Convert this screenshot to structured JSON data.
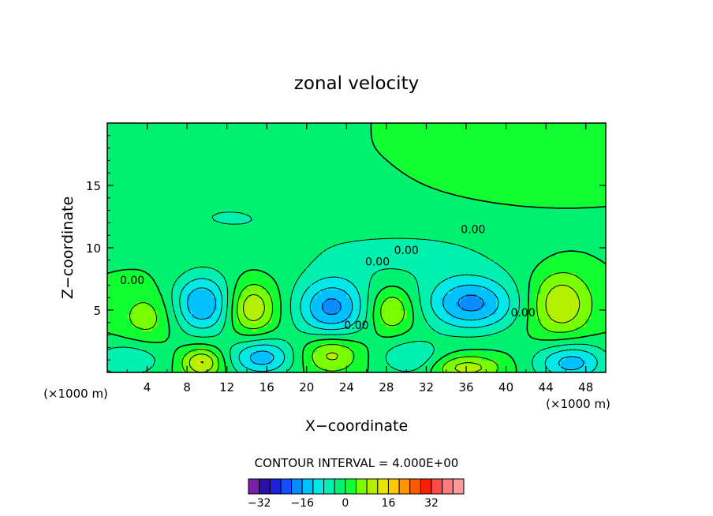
{
  "chart_data": {
    "type": "heatmap",
    "title": "zonal velocity",
    "xlabel": "X−coordinate",
    "ylabel": "Z−coordinate",
    "x_unit_left": "(×1000 m)",
    "x_unit_right": "(×1000 m)",
    "xlim": [
      0,
      50
    ],
    "ylim": [
      0,
      20
    ],
    "x_ticks": [
      4,
      8,
      12,
      16,
      20,
      24,
      28,
      32,
      36,
      40,
      44,
      48
    ],
    "y_ticks": [
      5,
      10,
      15
    ],
    "contour_interval_text": "CONTOUR INTERVAL = 4.000E+00",
    "contour_labels": [
      {
        "text": "0.00",
        "x": 36.7,
        "y": 11.5
      },
      {
        "text": "0.00",
        "x": 30.0,
        "y": 9.8
      },
      {
        "text": "0.00",
        "x": 27.1,
        "y": 8.9
      },
      {
        "text": "0.00",
        "x": 2.5,
        "y": 7.4
      },
      {
        "text": "0.00",
        "x": 25.0,
        "y": 3.8
      },
      {
        "text": "0.00",
        "x": 41.7,
        "y": 4.8
      }
    ],
    "colorbar": {
      "levels": [
        -36,
        -32,
        -28,
        -24,
        -20,
        -16,
        -12,
        -8,
        -4,
        0,
        4,
        8,
        12,
        16,
        20,
        24,
        28,
        32,
        36,
        40
      ],
      "tick_labels": [
        "−32",
        "−16",
        "0",
        "16",
        "32"
      ],
      "tick_values": [
        -32,
        -16,
        0,
        16,
        32
      ],
      "colors": [
        "#7b1fa8",
        "#2a0fa8",
        "#2020d8",
        "#1050ff",
        "#0a8cff",
        "#00c0ff",
        "#00e8e8",
        "#00f0b0",
        "#00f070",
        "#10ff30",
        "#78ff00",
        "#b4f000",
        "#e6e600",
        "#ffc800",
        "#ff9600",
        "#ff5a00",
        "#ff1e00",
        "#ff4a4a",
        "#ff7a7a",
        "#ff9a9a"
      ]
    },
    "field_sources": [
      {
        "x": 9.5,
        "y": 5.5,
        "amp": -16,
        "rx": 3.0,
        "ry": 2.4
      },
      {
        "x": 14.5,
        "y": 5.2,
        "amp": 12,
        "rx": 2.3,
        "ry": 2.0
      },
      {
        "x": 22.5,
        "y": 5.2,
        "amp": -17,
        "rx": 3.6,
        "ry": 2.4
      },
      {
        "x": 28.5,
        "y": 5.0,
        "amp": 9,
        "rx": 2.2,
        "ry": 1.8
      },
      {
        "x": 36.5,
        "y": 5.5,
        "amp": -17,
        "rx": 4.6,
        "ry": 2.2
      },
      {
        "x": 45.5,
        "y": 5.5,
        "amp": 12,
        "rx": 3.0,
        "ry": 2.6
      },
      {
        "x": 4.0,
        "y": 4.5,
        "amp": 6,
        "rx": 2.8,
        "ry": 2.0
      },
      {
        "x": 2.0,
        "y": 1.0,
        "amp": -8,
        "rx": 3.5,
        "ry": 1.4
      },
      {
        "x": 9.5,
        "y": 0.8,
        "amp": 13,
        "rx": 2.0,
        "ry": 1.2
      },
      {
        "x": 15.5,
        "y": 1.2,
        "amp": -14,
        "rx": 3.2,
        "ry": 1.5
      },
      {
        "x": 22.5,
        "y": 1.5,
        "amp": 10,
        "rx": 2.8,
        "ry": 1.5
      },
      {
        "x": 30.5,
        "y": 1.2,
        "amp": -8,
        "rx": 3.2,
        "ry": 1.5
      },
      {
        "x": 36.0,
        "y": 0.4,
        "amp": 10,
        "rx": 3.5,
        "ry": 1.0
      },
      {
        "x": 46.5,
        "y": 0.8,
        "amp": -14,
        "rx": 3.6,
        "ry": 1.6
      },
      {
        "x": 30.0,
        "y": 9.5,
        "amp": -5,
        "rx": 12.0,
        "ry": 2.5
      },
      {
        "x": 12.0,
        "y": 12.5,
        "amp": -4,
        "rx": 10.0,
        "ry": 2.5
      },
      {
        "x": 42.0,
        "y": 17.5,
        "amp": 3,
        "rx": 6.0,
        "ry": 2.5
      },
      {
        "x": 5.0,
        "y": 18.5,
        "amp": -3,
        "rx": 8.0,
        "ry": 2.0
      }
    ]
  }
}
